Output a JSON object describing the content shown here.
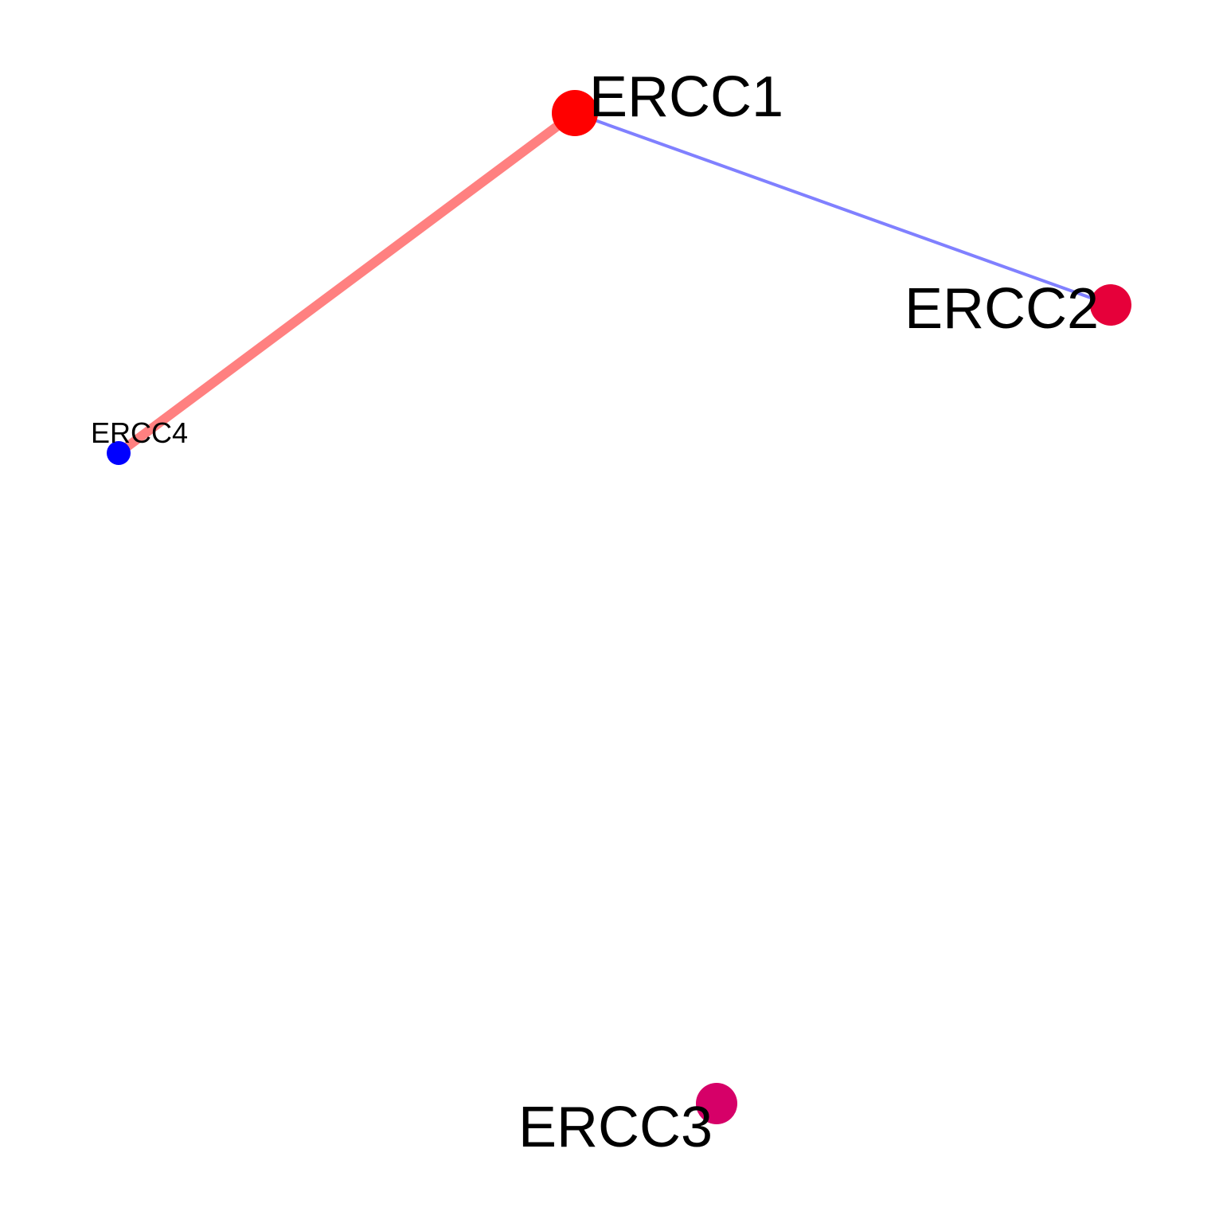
{
  "network": {
    "nodes": [
      {
        "id": "ERCC1",
        "label": "ERCC1",
        "color": "#FF0000"
      },
      {
        "id": "ERCC2",
        "label": "ERCC2",
        "color": "#E6003A"
      },
      {
        "id": "ERCC3",
        "label": "ERCC3",
        "color": "#D60068"
      },
      {
        "id": "ERCC4",
        "label": "ERCC4",
        "color": "#0000FF"
      }
    ],
    "edges": [
      {
        "source": "ERCC1",
        "target": "ERCC4",
        "color": "#FF8080",
        "weight": "strong"
      },
      {
        "source": "ERCC1",
        "target": "ERCC2",
        "color": "#8080FF",
        "weight": "weak"
      }
    ]
  }
}
